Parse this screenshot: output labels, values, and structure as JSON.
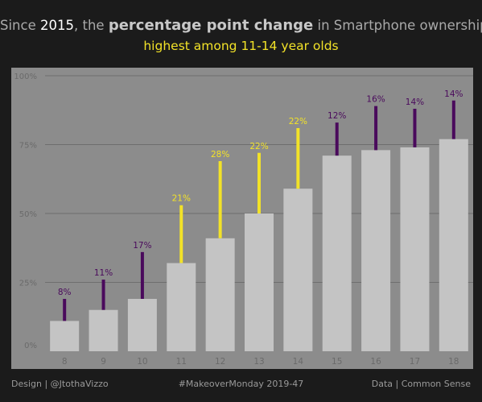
{
  "title": {
    "part1": "Since ",
    "year": "2015",
    "part2": ", the ",
    "emphasis": "percentage point change",
    "part3": " in Smartphone ownership is",
    "line2": "highest among 11-14 year olds"
  },
  "footer": {
    "left": "Design | @JtothaVizzo",
    "center": "#MakeoverMonday 2019-47",
    "right": "Data | Common Sense"
  },
  "colors": {
    "background": "#1b1b1b",
    "plot_background": "#8c8c8c",
    "bar": "#c4c4c4",
    "highlight": "#f2e228",
    "change": "#4a0a5c",
    "gridline": "#6e6e6e",
    "tick_text": "#6a6a6a"
  },
  "chart_data": {
    "type": "bar",
    "xlabel": "",
    "ylabel": "",
    "ylim": [
      0,
      1
    ],
    "y_ticks": [
      "0%",
      "25%",
      "50%",
      "75%",
      "100%"
    ],
    "y_tick_values": [
      0,
      0.25,
      0.5,
      0.75,
      1
    ],
    "grid": true,
    "categories": [
      "8",
      "9",
      "10",
      "11",
      "12",
      "13",
      "14",
      "15",
      "16",
      "17",
      "18"
    ],
    "series": [
      {
        "values": [
          0.11,
          0.15,
          0.19,
          0.32,
          0.41,
          0.5,
          0.59,
          0.71,
          0.73,
          0.74,
          0.77
        ]
      },
      {
        "values": [
          0.19,
          0.26,
          0.36,
          0.53,
          0.69,
          0.72,
          0.81,
          0.83,
          0.89,
          0.88,
          0.91
        ]
      }
    ],
    "change_labels": [
      "8%",
      "11%",
      "17%",
      "21%",
      "28%",
      "22%",
      "22%",
      "12%",
      "16%",
      "14%",
      "14%"
    ],
    "highlighted": [
      "11",
      "12",
      "13",
      "14"
    ]
  }
}
